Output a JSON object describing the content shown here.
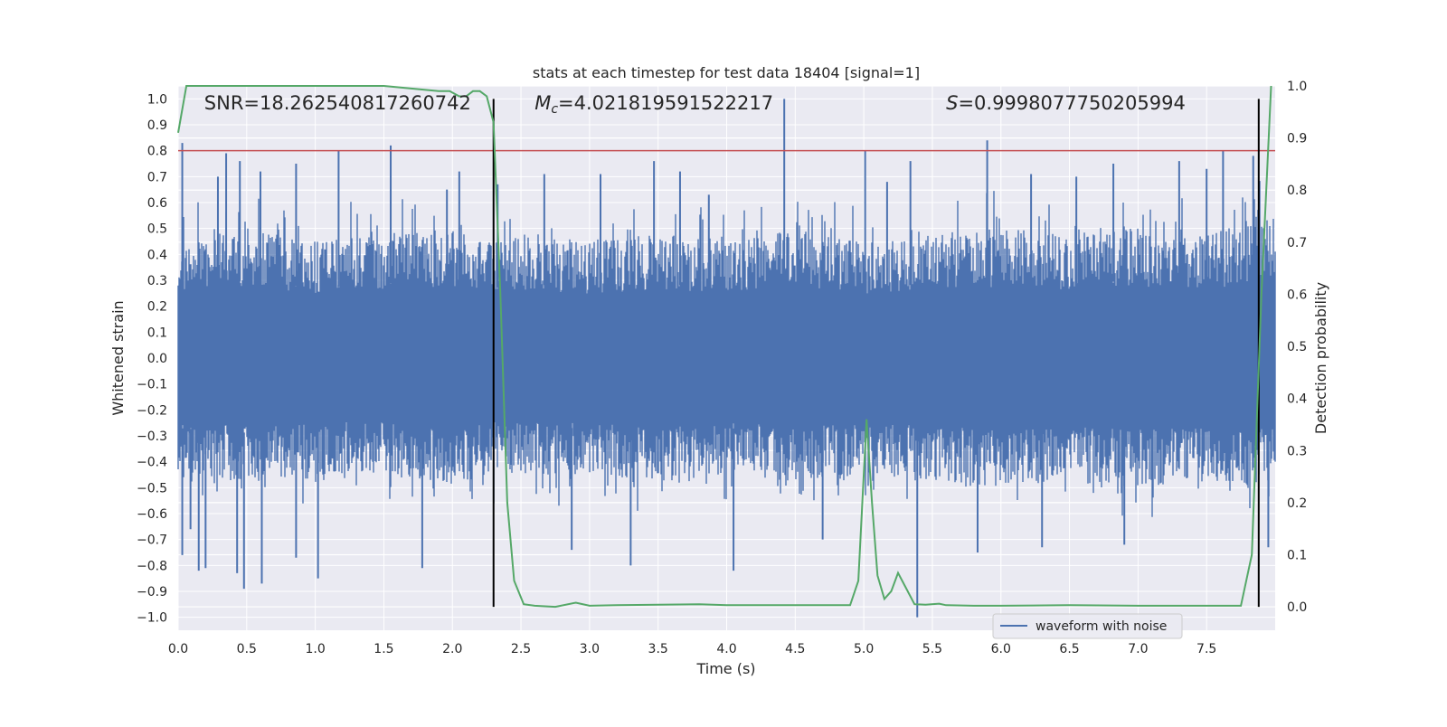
{
  "chart_data": {
    "type": "line",
    "title": "stats at each timestep for test data 18404 [signal=1]",
    "xlabel": "Time (s)",
    "ylabel": "Whitened strain",
    "y2label": "Detection probability",
    "xlim": [
      0.0,
      8.0
    ],
    "ylim": [
      -1.05,
      1.05
    ],
    "y2lim": [
      -0.045,
      1.0
    ],
    "x_ticks": [
      0.0,
      0.5,
      1.0,
      1.5,
      2.0,
      2.5,
      3.0,
      3.5,
      4.0,
      4.5,
      5.0,
      5.5,
      6.0,
      6.5,
      7.0,
      7.5
    ],
    "x_tick_labels": [
      "0.0",
      "0.5",
      "1.0",
      "1.5",
      "2.0",
      "2.5",
      "3.0",
      "3.5",
      "4.0",
      "4.5",
      "5.0",
      "5.5",
      "6.0",
      "6.5",
      "7.0",
      "7.5"
    ],
    "y_ticks": [
      1.0,
      0.9,
      0.8,
      0.7,
      0.6,
      0.5,
      0.4,
      0.3,
      0.2,
      0.1,
      0.0,
      -0.1,
      -0.2,
      -0.3,
      -0.4,
      -0.5,
      -0.6,
      -0.7,
      -0.8,
      -0.9,
      -1.0
    ],
    "y_tick_labels": [
      "1.0",
      "0.9",
      "0.8",
      "0.7",
      "0.6",
      "0.5",
      "0.4",
      "0.3",
      "0.2",
      "0.1",
      "0.0",
      "−0.1",
      "−0.2",
      "−0.3",
      "−0.4",
      "−0.5",
      "−0.6",
      "−0.7",
      "−0.8",
      "−0.9",
      "−1.0"
    ],
    "y2_ticks": [
      1.0,
      0.9,
      0.8,
      0.7,
      0.6,
      0.5,
      0.4,
      0.3,
      0.2,
      0.1,
      0.0
    ],
    "y2_tick_labels": [
      "1.0",
      "0.9",
      "0.8",
      "0.7",
      "0.6",
      "0.5",
      "0.4",
      "0.3",
      "0.2",
      "0.1",
      "0.0"
    ],
    "grid": true,
    "legend_placement": "lower-center-right",
    "annotations": [
      {
        "text": "SNR=18.262540817260742",
        "x": 0.19
      },
      {
        "math": "M",
        "sub": "c",
        "text": "=4.021819591522217",
        "x": 2.6
      },
      {
        "math": "S",
        "text": "=0.9998077750205994",
        "x": 5.6
      }
    ],
    "series": [
      {
        "name": "waveform with noise",
        "kind": "strain",
        "color": "#4c72b0",
        "envelope": {
          "x": [
            0.0,
            0.5,
            1.0,
            1.5,
            2.0,
            2.3,
            2.5,
            3.0,
            3.5,
            4.0,
            4.5,
            5.0,
            5.5,
            6.0,
            6.5,
            7.0,
            7.5,
            8.0
          ],
          "upper": [
            0.45,
            0.5,
            0.45,
            0.48,
            0.5,
            0.45,
            0.48,
            0.45,
            0.48,
            0.45,
            0.5,
            0.45,
            0.48,
            0.5,
            0.48,
            0.5,
            0.48,
            0.55
          ],
          "lower": [
            -0.45,
            -0.48,
            -0.45,
            -0.45,
            -0.5,
            -0.45,
            -0.45,
            -0.45,
            -0.48,
            -0.45,
            -0.48,
            -0.45,
            -0.48,
            -0.5,
            -0.48,
            -0.5,
            -0.48,
            -0.5
          ]
        },
        "spikes": [
          [
            0.03,
            0.83
          ],
          [
            0.03,
            -0.76
          ],
          [
            0.09,
            -0.66
          ],
          [
            0.15,
            -0.82
          ],
          [
            0.2,
            -0.81
          ],
          [
            0.29,
            0.7
          ],
          [
            0.35,
            0.79
          ],
          [
            0.43,
            -0.83
          ],
          [
            0.45,
            0.76
          ],
          [
            0.48,
            -0.89
          ],
          [
            0.6,
            0.72
          ],
          [
            0.61,
            -0.87
          ],
          [
            0.86,
            0.75
          ],
          [
            0.86,
            -0.77
          ],
          [
            1.02,
            -0.85
          ],
          [
            1.17,
            0.8
          ],
          [
            1.55,
            0.82
          ],
          [
            1.78,
            -0.81
          ],
          [
            1.96,
            0.65
          ],
          [
            2.05,
            0.72
          ],
          [
            2.33,
            0.67
          ],
          [
            2.67,
            0.71
          ],
          [
            2.87,
            -0.74
          ],
          [
            3.08,
            0.71
          ],
          [
            3.3,
            -0.8
          ],
          [
            3.47,
            0.76
          ],
          [
            3.66,
            0.72
          ],
          [
            3.87,
            0.63
          ],
          [
            4.05,
            -0.82
          ],
          [
            4.42,
            1.0
          ],
          [
            4.7,
            -0.7
          ],
          [
            5.01,
            0.8
          ],
          [
            5.17,
            0.68
          ],
          [
            5.34,
            0.76
          ],
          [
            5.39,
            -1.0
          ],
          [
            5.83,
            -0.75
          ],
          [
            5.9,
            0.84
          ],
          [
            6.22,
            0.71
          ],
          [
            6.3,
            -0.73
          ],
          [
            6.55,
            0.7
          ],
          [
            6.82,
            0.75
          ],
          [
            6.9,
            -0.72
          ],
          [
            7.3,
            0.76
          ],
          [
            7.5,
            0.73
          ],
          [
            7.62,
            0.8
          ],
          [
            7.84,
            0.78
          ],
          [
            7.95,
            -0.73
          ]
        ]
      },
      {
        "kind": "probability",
        "axis": "right",
        "color": "#55a868",
        "x": [
          0.0,
          0.06,
          0.2,
          0.5,
          1.0,
          1.5,
          1.9,
          1.98,
          2.05,
          2.1,
          2.15,
          2.2,
          2.25,
          2.3,
          2.35,
          2.4,
          2.45,
          2.52,
          2.6,
          2.75,
          2.9,
          3.0,
          3.2,
          3.5,
          3.8,
          4.0,
          4.5,
          4.9,
          4.96,
          5.02,
          5.06,
          5.1,
          5.15,
          5.2,
          5.25,
          5.3,
          5.37,
          5.45,
          5.55,
          5.6,
          5.8,
          6.0,
          6.5,
          7.0,
          7.5,
          7.75,
          7.83,
          7.9,
          7.97
        ],
        "y": [
          0.91,
          1.0,
          1.0,
          1.0,
          1.0,
          1.0,
          0.99,
          0.99,
          0.98,
          0.98,
          0.99,
          0.99,
          0.98,
          0.93,
          0.6,
          0.2,
          0.05,
          0.005,
          0.002,
          0.0,
          0.008,
          0.002,
          0.003,
          0.004,
          0.005,
          0.003,
          0.003,
          0.003,
          0.05,
          0.36,
          0.2,
          0.06,
          0.015,
          0.03,
          0.065,
          0.04,
          0.005,
          0.004,
          0.006,
          0.003,
          0.002,
          0.002,
          0.003,
          0.002,
          0.002,
          0.002,
          0.1,
          0.6,
          1.0
        ]
      },
      {
        "kind": "hline",
        "y": 0.8,
        "color": "#c44e52"
      },
      {
        "kind": "vline",
        "x": 2.3,
        "color": "#000000"
      },
      {
        "kind": "vline",
        "x": 7.88,
        "color": "#000000"
      }
    ]
  }
}
